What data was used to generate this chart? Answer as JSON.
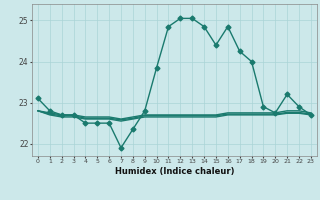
{
  "xlabel": "Humidex (Indice chaleur)",
  "background_color": "#cce8ea",
  "grid_color": "#aad4d6",
  "line_color": "#1a7a6e",
  "xlim": [
    -0.5,
    23.5
  ],
  "ylim": [
    21.7,
    25.4
  ],
  "yticks": [
    22,
    23,
    24,
    25
  ],
  "xticks": [
    0,
    1,
    2,
    3,
    4,
    5,
    6,
    7,
    8,
    9,
    10,
    11,
    12,
    13,
    14,
    15,
    16,
    17,
    18,
    19,
    20,
    21,
    22,
    23
  ],
  "series_main": [
    23.1,
    22.8,
    22.7,
    22.7,
    22.5,
    22.5,
    22.5,
    21.9,
    22.35,
    22.8,
    23.85,
    24.85,
    25.05,
    25.05,
    24.85,
    24.4,
    24.85,
    24.25,
    24.0,
    22.9,
    22.75,
    23.2,
    22.9,
    22.7
  ],
  "series_flat": [
    [
      22.8,
      22.75,
      22.7,
      22.7,
      22.65,
      22.65,
      22.65,
      22.6,
      22.65,
      22.7,
      22.7,
      22.7,
      22.7,
      22.7,
      22.7,
      22.7,
      22.75,
      22.75,
      22.75,
      22.75,
      22.75,
      22.8,
      22.8,
      22.75
    ],
    [
      22.8,
      22.72,
      22.68,
      22.68,
      22.62,
      22.62,
      22.62,
      22.58,
      22.62,
      22.68,
      22.68,
      22.68,
      22.68,
      22.68,
      22.68,
      22.68,
      22.72,
      22.72,
      22.72,
      22.72,
      22.72,
      22.76,
      22.76,
      22.72
    ],
    [
      22.8,
      22.7,
      22.65,
      22.65,
      22.6,
      22.6,
      22.6,
      22.55,
      22.6,
      22.65,
      22.65,
      22.65,
      22.65,
      22.65,
      22.65,
      22.65,
      22.7,
      22.7,
      22.7,
      22.7,
      22.7,
      22.74,
      22.74,
      22.7
    ]
  ],
  "markersize": 2.5,
  "linewidth": 1.0
}
